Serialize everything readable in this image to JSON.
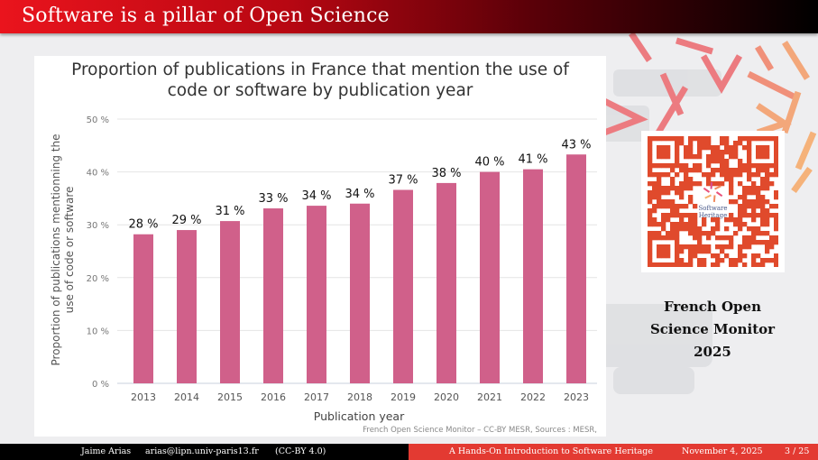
{
  "slide": {
    "title": "Software is a pillar of Open Science",
    "side_caption": [
      "French Open",
      "Science Monitor",
      "2025"
    ],
    "qr": {
      "label": "qr-code",
      "logo_text": [
        "Software",
        "Heritage"
      ],
      "color": "#e04a2c"
    }
  },
  "footer": {
    "author": "Jaime Arias",
    "email": "arias@lipn.univ-paris13.fr",
    "license": "(CC-BY 4.0)",
    "talk_title": "A Hands-On Introduction to Software Heritage",
    "date": "November 4, 2025",
    "page": "3 / 25"
  },
  "colors": {
    "bar": "#d0608a",
    "footer_right": "#e33a32",
    "title_start": "#ea141d",
    "title_end": "#000000"
  },
  "chart_data": {
    "type": "bar",
    "title": "Proportion of publications in France that mention the use of code or software by publication year",
    "title_lines": [
      "Proportion of publications in France that mention the use of",
      "code or software by publication year"
    ],
    "xlabel": "Publication year",
    "ylabel": "Proportion of publications mentionning the use of code or software",
    "ylabel_lines": [
      "Proportion of publications mentionning the",
      "use of code or software"
    ],
    "categories": [
      "2013",
      "2014",
      "2015",
      "2016",
      "2017",
      "2018",
      "2019",
      "2020",
      "2021",
      "2022",
      "2023"
    ],
    "values": [
      28.2,
      29.0,
      30.7,
      33.1,
      33.6,
      34.0,
      36.6,
      37.9,
      40.0,
      40.5,
      43.3
    ],
    "data_labels": [
      "28 %",
      "29 %",
      "31 %",
      "33 %",
      "34 %",
      "34 %",
      "37 %",
      "38 %",
      "40 %",
      "41 %",
      "43 %"
    ],
    "yticks": [
      0,
      10,
      20,
      30,
      40,
      50
    ],
    "ytick_labels": [
      "0 %",
      "10 %",
      "20 %",
      "30 %",
      "40 %",
      "50 %"
    ],
    "ylim": [
      0,
      50
    ],
    "grid": true,
    "legend": "none",
    "credit": "French Open Science Monitor – CC-BY MESR, Sources : MESR,"
  }
}
